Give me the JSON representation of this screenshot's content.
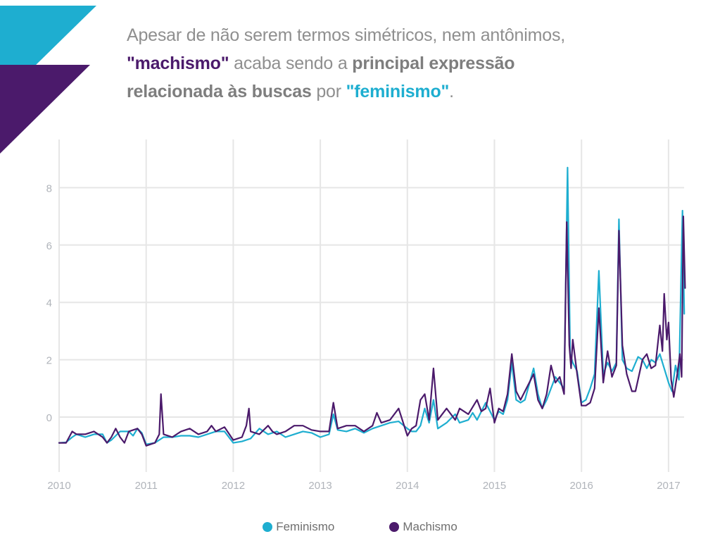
{
  "headline": {
    "line1": "Apesar de não serem termos simétricos, nem antônimos,",
    "line2_a": "\"machismo\"",
    "line2_b": " acaba sendo a ",
    "line2_c": "principal expressão",
    "line3_a": "relacionada às buscas",
    "line3_b": " por ",
    "line3_c": "\"feminismo\"",
    "line3_d": "."
  },
  "colors": {
    "feminismo": "#1eaed0",
    "machismo": "#4b1a6b",
    "grid": "#e6e6e6",
    "deco_cyan": "#1eaed0",
    "deco_purple": "#4b1a6b"
  },
  "chart_data": {
    "type": "line",
    "title": "",
    "xlabel": "",
    "ylabel": "",
    "xlim": [
      2010,
      2017.2
    ],
    "ylim": [
      -1.8,
      9.3
    ],
    "grid": true,
    "legend": "bottom-center",
    "x_ticks": [
      2010,
      2011,
      2012,
      2013,
      2014,
      2015,
      2016,
      2017
    ],
    "x_tick_labels": [
      "2010",
      "2011",
      "2012",
      "2013",
      "2014",
      "2015",
      "2016",
      "2017"
    ],
    "y_ticks": [
      0,
      2,
      4,
      6,
      8
    ],
    "y_tick_labels": [
      "0",
      "2",
      "4",
      "6",
      "8"
    ],
    "series": [
      {
        "name": "Feminismo",
        "color": "#1eaed0",
        "points": [
          [
            2010.0,
            -0.9
          ],
          [
            2010.08,
            -0.88
          ],
          [
            2010.15,
            -0.7
          ],
          [
            2010.2,
            -0.6
          ],
          [
            2010.3,
            -0.7
          ],
          [
            2010.4,
            -0.6
          ],
          [
            2010.5,
            -0.6
          ],
          [
            2010.55,
            -0.9
          ],
          [
            2010.6,
            -0.8
          ],
          [
            2010.7,
            -0.5
          ],
          [
            2010.8,
            -0.5
          ],
          [
            2010.85,
            -0.65
          ],
          [
            2010.9,
            -0.4
          ],
          [
            2010.95,
            -0.55
          ],
          [
            2011.0,
            -0.95
          ],
          [
            2011.1,
            -0.9
          ],
          [
            2011.2,
            -0.7
          ],
          [
            2011.3,
            -0.7
          ],
          [
            2011.4,
            -0.65
          ],
          [
            2011.5,
            -0.65
          ],
          [
            2011.6,
            -0.7
          ],
          [
            2011.7,
            -0.6
          ],
          [
            2011.8,
            -0.5
          ],
          [
            2011.9,
            -0.5
          ],
          [
            2012.0,
            -0.9
          ],
          [
            2012.1,
            -0.85
          ],
          [
            2012.2,
            -0.75
          ],
          [
            2012.3,
            -0.4
          ],
          [
            2012.4,
            -0.6
          ],
          [
            2012.5,
            -0.5
          ],
          [
            2012.6,
            -0.7
          ],
          [
            2012.7,
            -0.6
          ],
          [
            2012.8,
            -0.5
          ],
          [
            2012.9,
            -0.55
          ],
          [
            2013.0,
            -0.7
          ],
          [
            2013.1,
            -0.6
          ],
          [
            2013.15,
            0.1
          ],
          [
            2013.2,
            -0.45
          ],
          [
            2013.3,
            -0.5
          ],
          [
            2013.4,
            -0.4
          ],
          [
            2013.5,
            -0.55
          ],
          [
            2013.6,
            -0.4
          ],
          [
            2013.7,
            -0.3
          ],
          [
            2013.8,
            -0.2
          ],
          [
            2013.9,
            -0.15
          ],
          [
            2014.0,
            -0.4
          ],
          [
            2014.05,
            -0.5
          ],
          [
            2014.1,
            -0.5
          ],
          [
            2014.15,
            -0.3
          ],
          [
            2014.2,
            0.3
          ],
          [
            2014.25,
            -0.2
          ],
          [
            2014.3,
            0.6
          ],
          [
            2014.35,
            -0.4
          ],
          [
            2014.45,
            -0.2
          ],
          [
            2014.55,
            0.1
          ],
          [
            2014.6,
            -0.2
          ],
          [
            2014.7,
            -0.1
          ],
          [
            2014.75,
            0.15
          ],
          [
            2014.8,
            -0.1
          ],
          [
            2014.9,
            0.5
          ],
          [
            2015.0,
            -0.1
          ],
          [
            2015.05,
            0.2
          ],
          [
            2015.1,
            0.1
          ],
          [
            2015.15,
            0.6
          ],
          [
            2015.2,
            1.9
          ],
          [
            2015.25,
            0.6
          ],
          [
            2015.3,
            0.5
          ],
          [
            2015.35,
            0.6
          ],
          [
            2015.45,
            1.7
          ],
          [
            2015.5,
            0.8
          ],
          [
            2015.55,
            0.3
          ],
          [
            2015.6,
            0.6
          ],
          [
            2015.7,
            1.4
          ],
          [
            2015.75,
            1.2
          ],
          [
            2015.8,
            1.0
          ],
          [
            2015.84,
            8.7
          ],
          [
            2015.87,
            2.2
          ],
          [
            2015.9,
            1.9
          ],
          [
            2015.95,
            1.6
          ],
          [
            2016.0,
            0.5
          ],
          [
            2016.05,
            0.6
          ],
          [
            2016.1,
            1.0
          ],
          [
            2016.15,
            1.5
          ],
          [
            2016.2,
            5.1
          ],
          [
            2016.25,
            1.5
          ],
          [
            2016.3,
            1.9
          ],
          [
            2016.35,
            1.6
          ],
          [
            2016.4,
            1.9
          ],
          [
            2016.43,
            6.9
          ],
          [
            2016.47,
            2.0
          ],
          [
            2016.52,
            1.7
          ],
          [
            2016.58,
            1.6
          ],
          [
            2016.65,
            2.1
          ],
          [
            2016.7,
            2.0
          ],
          [
            2016.75,
            1.7
          ],
          [
            2016.8,
            2.0
          ],
          [
            2016.85,
            1.9
          ],
          [
            2016.9,
            2.2
          ],
          [
            2016.95,
            1.7
          ],
          [
            2017.0,
            1.2
          ],
          [
            2017.04,
            0.9
          ],
          [
            2017.08,
            1.8
          ],
          [
            2017.12,
            1.3
          ],
          [
            2017.16,
            7.2
          ],
          [
            2017.18,
            3.6
          ]
        ]
      },
      {
        "name": "Machismo",
        "color": "#4b1a6b",
        "points": [
          [
            2010.0,
            -0.9
          ],
          [
            2010.08,
            -0.9
          ],
          [
            2010.15,
            -0.5
          ],
          [
            2010.2,
            -0.6
          ],
          [
            2010.3,
            -0.6
          ],
          [
            2010.4,
            -0.5
          ],
          [
            2010.5,
            -0.7
          ],
          [
            2010.55,
            -0.9
          ],
          [
            2010.6,
            -0.7
          ],
          [
            2010.65,
            -0.4
          ],
          [
            2010.7,
            -0.7
          ],
          [
            2010.75,
            -0.9
          ],
          [
            2010.8,
            -0.5
          ],
          [
            2010.9,
            -0.4
          ],
          [
            2010.95,
            -0.6
          ],
          [
            2011.0,
            -1.0
          ],
          [
            2011.1,
            -0.9
          ],
          [
            2011.15,
            -0.6
          ],
          [
            2011.17,
            0.8
          ],
          [
            2011.2,
            -0.6
          ],
          [
            2011.3,
            -0.7
          ],
          [
            2011.4,
            -0.5
          ],
          [
            2011.5,
            -0.4
          ],
          [
            2011.6,
            -0.6
          ],
          [
            2011.7,
            -0.5
          ],
          [
            2011.75,
            -0.3
          ],
          [
            2011.8,
            -0.5
          ],
          [
            2011.9,
            -0.35
          ],
          [
            2012.0,
            -0.8
          ],
          [
            2012.1,
            -0.7
          ],
          [
            2012.15,
            -0.3
          ],
          [
            2012.18,
            0.3
          ],
          [
            2012.2,
            -0.5
          ],
          [
            2012.3,
            -0.6
          ],
          [
            2012.4,
            -0.3
          ],
          [
            2012.45,
            -0.5
          ],
          [
            2012.5,
            -0.6
          ],
          [
            2012.6,
            -0.5
          ],
          [
            2012.7,
            -0.3
          ],
          [
            2012.8,
            -0.3
          ],
          [
            2012.9,
            -0.45
          ],
          [
            2013.0,
            -0.5
          ],
          [
            2013.1,
            -0.5
          ],
          [
            2013.15,
            0.5
          ],
          [
            2013.2,
            -0.4
          ],
          [
            2013.3,
            -0.3
          ],
          [
            2013.4,
            -0.3
          ],
          [
            2013.5,
            -0.5
          ],
          [
            2013.6,
            -0.3
          ],
          [
            2013.65,
            0.15
          ],
          [
            2013.7,
            -0.2
          ],
          [
            2013.8,
            -0.1
          ],
          [
            2013.9,
            0.3
          ],
          [
            2014.0,
            -0.65
          ],
          [
            2014.05,
            -0.4
          ],
          [
            2014.1,
            -0.3
          ],
          [
            2014.15,
            0.6
          ],
          [
            2014.2,
            0.8
          ],
          [
            2014.25,
            -0.1
          ],
          [
            2014.3,
            1.7
          ],
          [
            2014.35,
            -0.1
          ],
          [
            2014.45,
            0.3
          ],
          [
            2014.55,
            -0.1
          ],
          [
            2014.6,
            0.3
          ],
          [
            2014.7,
            0.1
          ],
          [
            2014.8,
            0.6
          ],
          [
            2014.85,
            0.2
          ],
          [
            2014.9,
            0.3
          ],
          [
            2014.95,
            1.0
          ],
          [
            2015.0,
            -0.2
          ],
          [
            2015.05,
            0.3
          ],
          [
            2015.1,
            0.2
          ],
          [
            2015.15,
            0.8
          ],
          [
            2015.2,
            2.2
          ],
          [
            2015.25,
            0.9
          ],
          [
            2015.3,
            0.6
          ],
          [
            2015.4,
            1.2
          ],
          [
            2015.45,
            1.5
          ],
          [
            2015.5,
            0.6
          ],
          [
            2015.55,
            0.3
          ],
          [
            2015.6,
            0.8
          ],
          [
            2015.65,
            1.8
          ],
          [
            2015.7,
            1.2
          ],
          [
            2015.75,
            1.4
          ],
          [
            2015.8,
            0.8
          ],
          [
            2015.83,
            6.8
          ],
          [
            2015.86,
            2.5
          ],
          [
            2015.88,
            1.7
          ],
          [
            2015.9,
            2.7
          ],
          [
            2015.95,
            1.5
          ],
          [
            2016.0,
            0.4
          ],
          [
            2016.05,
            0.4
          ],
          [
            2016.1,
            0.5
          ],
          [
            2016.15,
            1.0
          ],
          [
            2016.2,
            3.8
          ],
          [
            2016.25,
            1.2
          ],
          [
            2016.3,
            2.3
          ],
          [
            2016.35,
            1.4
          ],
          [
            2016.4,
            1.8
          ],
          [
            2016.43,
            6.5
          ],
          [
            2016.47,
            2.5
          ],
          [
            2016.52,
            1.5
          ],
          [
            2016.58,
            0.9
          ],
          [
            2016.62,
            0.9
          ],
          [
            2016.7,
            2.0
          ],
          [
            2016.75,
            2.2
          ],
          [
            2016.8,
            1.7
          ],
          [
            2016.85,
            1.8
          ],
          [
            2016.9,
            3.2
          ],
          [
            2016.93,
            2.3
          ],
          [
            2016.95,
            4.3
          ],
          [
            2016.98,
            2.7
          ],
          [
            2017.0,
            3.3
          ],
          [
            2017.03,
            1.3
          ],
          [
            2017.06,
            0.7
          ],
          [
            2017.1,
            1.5
          ],
          [
            2017.13,
            2.2
          ],
          [
            2017.15,
            1.4
          ],
          [
            2017.17,
            7.0
          ],
          [
            2017.19,
            4.5
          ]
        ]
      }
    ]
  },
  "legend": {
    "items": [
      {
        "label": "Feminismo",
        "color": "#1eaed0"
      },
      {
        "label": "Machismo",
        "color": "#4b1a6b"
      }
    ]
  }
}
